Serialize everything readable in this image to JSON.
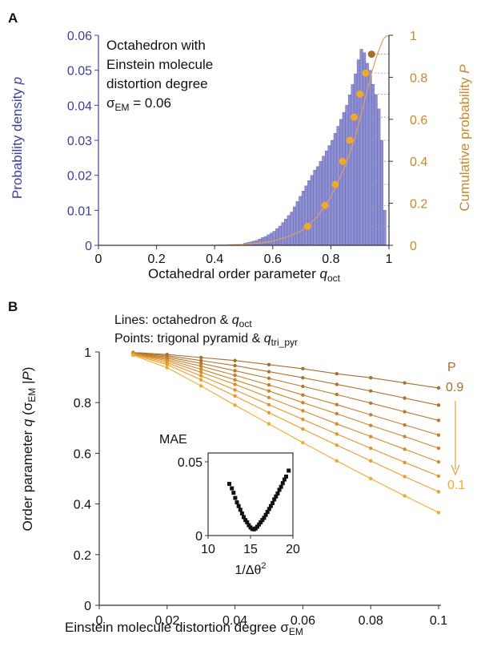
{
  "chart_data": [
    {
      "panel": "A",
      "type": "bar",
      "annotation_lines": [
        "Octahedron with",
        "Einstein molecule",
        "distortion degree"
      ],
      "annotation_sigma": {
        "sym": "σ",
        "sub": "EM",
        "rest": " = 0.06"
      },
      "xlabel": {
        "text": "Octahedral order parameter ",
        "var": "q",
        "sub": "oct"
      },
      "ylabel_left": {
        "text": "Probability density ",
        "var": "p"
      },
      "ylabel_right": {
        "text": "Cumulative probability ",
        "var": "P"
      },
      "xlim": [
        0,
        1
      ],
      "ylim_left": [
        0,
        0.06
      ],
      "ylim_right": [
        0,
        1
      ],
      "x_ticks": [
        "0",
        "0.2",
        "0.4",
        "0.6",
        "0.8",
        "1"
      ],
      "x_tick_values": [
        0,
        0.2,
        0.4,
        0.6,
        0.8,
        1
      ],
      "y_ticks_left": [
        "0",
        "0.01",
        "0.02",
        "0.03",
        "0.04",
        "0.05",
        "0.06"
      ],
      "y_tick_values_left": [
        0,
        0.01,
        0.02,
        0.03,
        0.04,
        0.05,
        0.06
      ],
      "y_ticks_right": [
        "0",
        "0.2",
        "0.4",
        "0.6",
        "0.8",
        "1"
      ],
      "y_tick_values_right": [
        0,
        0.2,
        0.4,
        0.6,
        0.8,
        1
      ],
      "histogram": {
        "bin_width": 0.01,
        "bin_start": [
          0.5,
          0.51,
          0.52,
          0.53,
          0.54,
          0.55,
          0.56,
          0.57,
          0.58,
          0.59,
          0.6,
          0.61,
          0.62,
          0.63,
          0.64,
          0.65,
          0.66,
          0.67,
          0.68,
          0.69,
          0.7,
          0.71,
          0.72,
          0.73,
          0.74,
          0.75,
          0.76,
          0.77,
          0.78,
          0.79,
          0.8,
          0.81,
          0.82,
          0.83,
          0.84,
          0.85,
          0.86,
          0.87,
          0.88,
          0.89,
          0.9,
          0.91,
          0.92,
          0.93,
          0.94,
          0.95,
          0.96,
          0.97,
          0.98
        ],
        "density": [
          0.0006,
          0.0008,
          0.001,
          0.0012,
          0.0014,
          0.0018,
          0.0022,
          0.0025,
          0.003,
          0.0035,
          0.004,
          0.0048,
          0.0055,
          0.0065,
          0.0075,
          0.0085,
          0.0095,
          0.011,
          0.0125,
          0.014,
          0.0155,
          0.017,
          0.0185,
          0.02,
          0.0215,
          0.0225,
          0.024,
          0.0255,
          0.027,
          0.0285,
          0.03,
          0.032,
          0.034,
          0.036,
          0.038,
          0.04,
          0.043,
          0.046,
          0.049,
          0.053,
          0.056,
          0.055,
          0.052,
          0.05,
          0.046,
          0.043,
          0.039,
          0.03,
          0.01
        ]
      },
      "cdf_curve": {
        "x": [
          0.4,
          0.5,
          0.55,
          0.6,
          0.65,
          0.7,
          0.75,
          0.8,
          0.85,
          0.88,
          0.9,
          0.92,
          0.94,
          0.96,
          0.98,
          0.99,
          1.0
        ],
        "P": [
          0.0,
          0.005,
          0.01,
          0.02,
          0.04,
          0.07,
          0.13,
          0.23,
          0.38,
          0.5,
          0.6,
          0.71,
          0.82,
          0.91,
          0.98,
          0.995,
          1.0
        ]
      },
      "cdf_points": {
        "x": [
          0.72,
          0.78,
          0.815,
          0.84,
          0.865,
          0.88,
          0.9,
          0.92
        ],
        "P": [
          0.09,
          0.19,
          0.29,
          0.4,
          0.5,
          0.61,
          0.72,
          0.82
        ],
        "x_dark": 0.94,
        "P_dark": 0.91
      },
      "colors": {
        "hist_fill": "#8d8fd2",
        "hist_stroke": "#5b5ea6",
        "left_axis": "#3d3f9a",
        "right_axis": "#c9892b",
        "curve": "#e0a060",
        "point": "#f2a92a",
        "point_dark": "#a86d2c",
        "guide": "#999999"
      }
    },
    {
      "panel": "B",
      "type": "line",
      "legend_lines": [
        {
          "text": "Lines: octahedron & ",
          "var": "q",
          "sub": "oct"
        },
        {
          "text": "Points: trigonal pyramid & ",
          "var": "q",
          "sub": "tri_pyr"
        }
      ],
      "xlabel": {
        "text": "Einstein molecule distortion degree ",
        "sym": "σ",
        "sub": "EM"
      },
      "ylabel": {
        "text": "Order parameter ",
        "var": "q",
        "paren_open": " (σ",
        "sub": "EM",
        "bar": " |",
        "var2": "P",
        "paren_close": ")"
      },
      "xlim": [
        0,
        0.1
      ],
      "ylim": [
        0,
        1
      ],
      "x_ticks": [
        "0",
        "0.02",
        "0.04",
        "0.06",
        "0.08",
        "0.1"
      ],
      "x_tick_values": [
        0,
        0.02,
        0.04,
        0.06,
        0.08,
        0.1
      ],
      "y_ticks": [
        "0",
        "0.2",
        "0.4",
        "0.6",
        "0.8",
        "1"
      ],
      "y_tick_values": [
        0,
        0.2,
        0.4,
        0.6,
        0.8,
        1
      ],
      "p_label": "P",
      "p_top": "0.9",
      "p_bottom": "0.1",
      "x": [
        0.01,
        0.02,
        0.03,
        0.04,
        0.05,
        0.06,
        0.07,
        0.08,
        0.09,
        0.1
      ],
      "series": [
        {
          "P": 0.9,
          "color": "#a86d2c",
          "values": [
            0.998,
            0.99,
            0.978,
            0.966,
            0.95,
            0.934,
            0.914,
            0.898,
            0.878,
            0.858
          ]
        },
        {
          "P": 0.8,
          "color": "#b0722b",
          "values": [
            0.997,
            0.985,
            0.966,
            0.946,
            0.922,
            0.898,
            0.872,
            0.846,
            0.818,
            0.79
          ]
        },
        {
          "P": 0.7,
          "color": "#b9782b",
          "values": [
            0.996,
            0.98,
            0.955,
            0.926,
            0.896,
            0.864,
            0.832,
            0.798,
            0.764,
            0.73
          ]
        },
        {
          "P": 0.6,
          "color": "#c27f2a",
          "values": [
            0.995,
            0.975,
            0.944,
            0.908,
            0.87,
            0.83,
            0.792,
            0.752,
            0.712,
            0.672
          ]
        },
        {
          "P": 0.5,
          "color": "#cc8629",
          "values": [
            0.994,
            0.97,
            0.932,
            0.89,
            0.846,
            0.8,
            0.756,
            0.71,
            0.666,
            0.62
          ]
        },
        {
          "P": 0.4,
          "color": "#d68d28",
          "values": [
            0.993,
            0.965,
            0.92,
            0.872,
            0.82,
            0.768,
            0.716,
            0.666,
            0.616,
            0.566
          ]
        },
        {
          "P": 0.3,
          "color": "#e09528",
          "values": [
            0.992,
            0.958,
            0.906,
            0.85,
            0.792,
            0.734,
            0.676,
            0.62,
            0.564,
            0.51
          ]
        },
        {
          "P": 0.2,
          "color": "#ea9d28",
          "values": [
            0.99,
            0.95,
            0.89,
            0.826,
            0.76,
            0.696,
            0.632,
            0.57,
            0.508,
            0.448
          ]
        },
        {
          "P": 0.1,
          "color": "#f4a828",
          "values": [
            0.987,
            0.938,
            0.866,
            0.79,
            0.716,
            0.642,
            0.57,
            0.5,
            0.432,
            0.366
          ]
        }
      ],
      "inset": {
        "ylabel": "MAE",
        "xlabel": {
          "text": "1/Δθ",
          "sup": "2"
        },
        "xlim": [
          10,
          20
        ],
        "ylim": [
          0,
          0.05
        ],
        "x_ticks": [
          "10",
          "15",
          "20"
        ],
        "x_tick_values": [
          10,
          15,
          20
        ],
        "y_ticks": [
          "0",
          "0.05"
        ],
        "y_tick_values": [
          0,
          0.05
        ],
        "x": [
          12.5,
          12.8,
          13.0,
          13.2,
          13.4,
          13.6,
          13.8,
          14.0,
          14.2,
          14.4,
          14.6,
          14.8,
          15.0,
          15.2,
          15.4,
          15.6,
          15.8,
          16.0,
          16.2,
          16.4,
          16.6,
          16.8,
          17.0,
          17.2,
          17.4,
          17.6,
          17.8,
          18.0,
          18.2,
          18.4,
          18.6,
          18.8,
          19.0,
          19.2,
          19.5
        ],
        "values": [
          0.035,
          0.032,
          0.029,
          0.0255,
          0.0225,
          0.02,
          0.0175,
          0.015,
          0.0125,
          0.0105,
          0.009,
          0.007,
          0.0055,
          0.0045,
          0.0042,
          0.0048,
          0.006,
          0.0075,
          0.009,
          0.0105,
          0.012,
          0.014,
          0.016,
          0.018,
          0.02,
          0.022,
          0.0245,
          0.0265,
          0.0285,
          0.031,
          0.033,
          0.0355,
          0.038,
          0.04,
          0.044
        ],
        "point_color": "#111111"
      },
      "colors": {
        "arrow": "#e0a040",
        "p_top": "#a86d2c",
        "p_bottom": "#f4a828",
        "text": "#222222",
        "axis": "#333333"
      }
    }
  ],
  "panel_labels": [
    "A",
    "B"
  ]
}
